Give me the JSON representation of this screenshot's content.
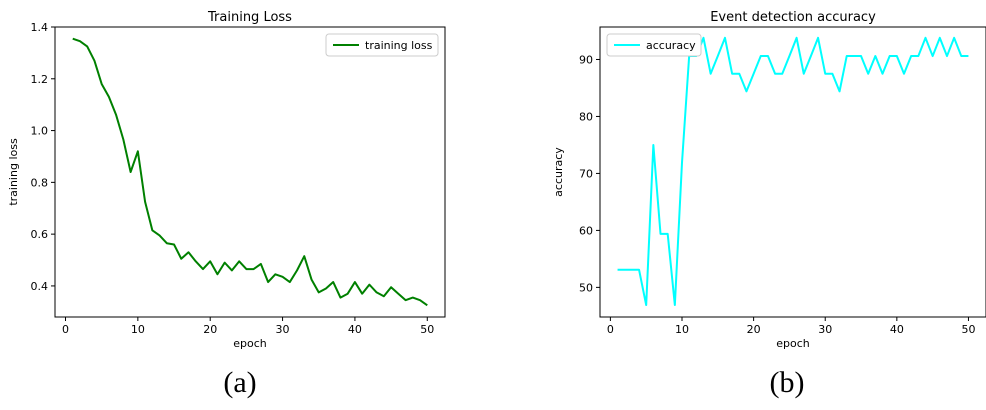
{
  "captions": {
    "left": "(a)",
    "right": "(b)"
  },
  "chart_data": [
    {
      "type": "line",
      "title": "Training Loss",
      "xlabel": "epoch",
      "ylabel": "training loss",
      "xlim": [
        -1.45,
        52.45
      ],
      "ylim": [
        0.28,
        1.4
      ],
      "xticks": [
        0,
        10,
        20,
        30,
        40,
        50
      ],
      "yticks": [
        0.4,
        0.6,
        0.8,
        1.0,
        1.2,
        1.4
      ],
      "ytick_labels": [
        "0.4",
        "0.6",
        "0.8",
        "1.0",
        "1.2",
        "1.4"
      ],
      "grid": false,
      "legend": "upper right",
      "series": [
        {
          "name": "training loss",
          "color": "#008000",
          "x": [
            1,
            2,
            3,
            4,
            5,
            6,
            7,
            8,
            9,
            10,
            11,
            12,
            13,
            14,
            15,
            16,
            17,
            18,
            19,
            20,
            21,
            22,
            23,
            24,
            25,
            26,
            27,
            28,
            29,
            30,
            31,
            32,
            33,
            34,
            35,
            36,
            37,
            38,
            39,
            40,
            41,
            42,
            43,
            44,
            45,
            46,
            47,
            48,
            49,
            50
          ],
          "values": [
            1.355,
            1.345,
            1.325,
            1.27,
            1.18,
            1.13,
            1.06,
            0.965,
            0.84,
            0.92,
            0.725,
            0.615,
            0.595,
            0.565,
            0.56,
            0.505,
            0.53,
            0.495,
            0.465,
            0.495,
            0.445,
            0.49,
            0.46,
            0.495,
            0.465,
            0.465,
            0.485,
            0.415,
            0.445,
            0.435,
            0.415,
            0.46,
            0.515,
            0.425,
            0.375,
            0.39,
            0.415,
            0.355,
            0.37,
            0.415,
            0.37,
            0.405,
            0.375,
            0.36,
            0.395,
            0.37,
            0.345,
            0.355,
            0.345,
            0.325
          ]
        }
      ]
    },
    {
      "type": "line",
      "title": "Event detection accuracy",
      "xlabel": "epoch",
      "ylabel": "accuracy",
      "xlim": [
        -1.45,
        52.45
      ],
      "ylim": [
        44.8,
        95.7
      ],
      "xticks": [
        0,
        10,
        20,
        30,
        40,
        50
      ],
      "yticks": [
        50,
        60,
        70,
        80,
        90
      ],
      "grid": false,
      "legend": "upper left",
      "series": [
        {
          "name": "accuracy",
          "color": "#00ffff",
          "x": [
            1,
            2,
            3,
            4,
            5,
            6,
            7,
            8,
            9,
            10,
            11,
            12,
            13,
            14,
            15,
            16,
            17,
            18,
            19,
            20,
            21,
            22,
            23,
            24,
            25,
            26,
            27,
            28,
            29,
            30,
            31,
            32,
            33,
            34,
            35,
            36,
            37,
            38,
            39,
            40,
            41,
            42,
            43,
            44,
            45,
            46,
            47,
            48,
            49,
            50
          ],
          "values": [
            53.1,
            53.1,
            53.1,
            53.1,
            46.9,
            75.0,
            59.4,
            59.4,
            46.9,
            71.9,
            90.6,
            90.6,
            93.8,
            87.5,
            90.6,
            93.8,
            87.5,
            87.5,
            84.4,
            87.5,
            90.6,
            90.6,
            87.5,
            87.5,
            90.6,
            93.8,
            87.5,
            90.6,
            93.8,
            87.5,
            87.5,
            84.4,
            90.6,
            90.6,
            90.6,
            87.5,
            90.6,
            87.5,
            90.6,
            90.6,
            87.5,
            90.6,
            90.6,
            93.8,
            90.6,
            93.8,
            90.6,
            93.8,
            90.6,
            90.6
          ]
        }
      ]
    }
  ]
}
